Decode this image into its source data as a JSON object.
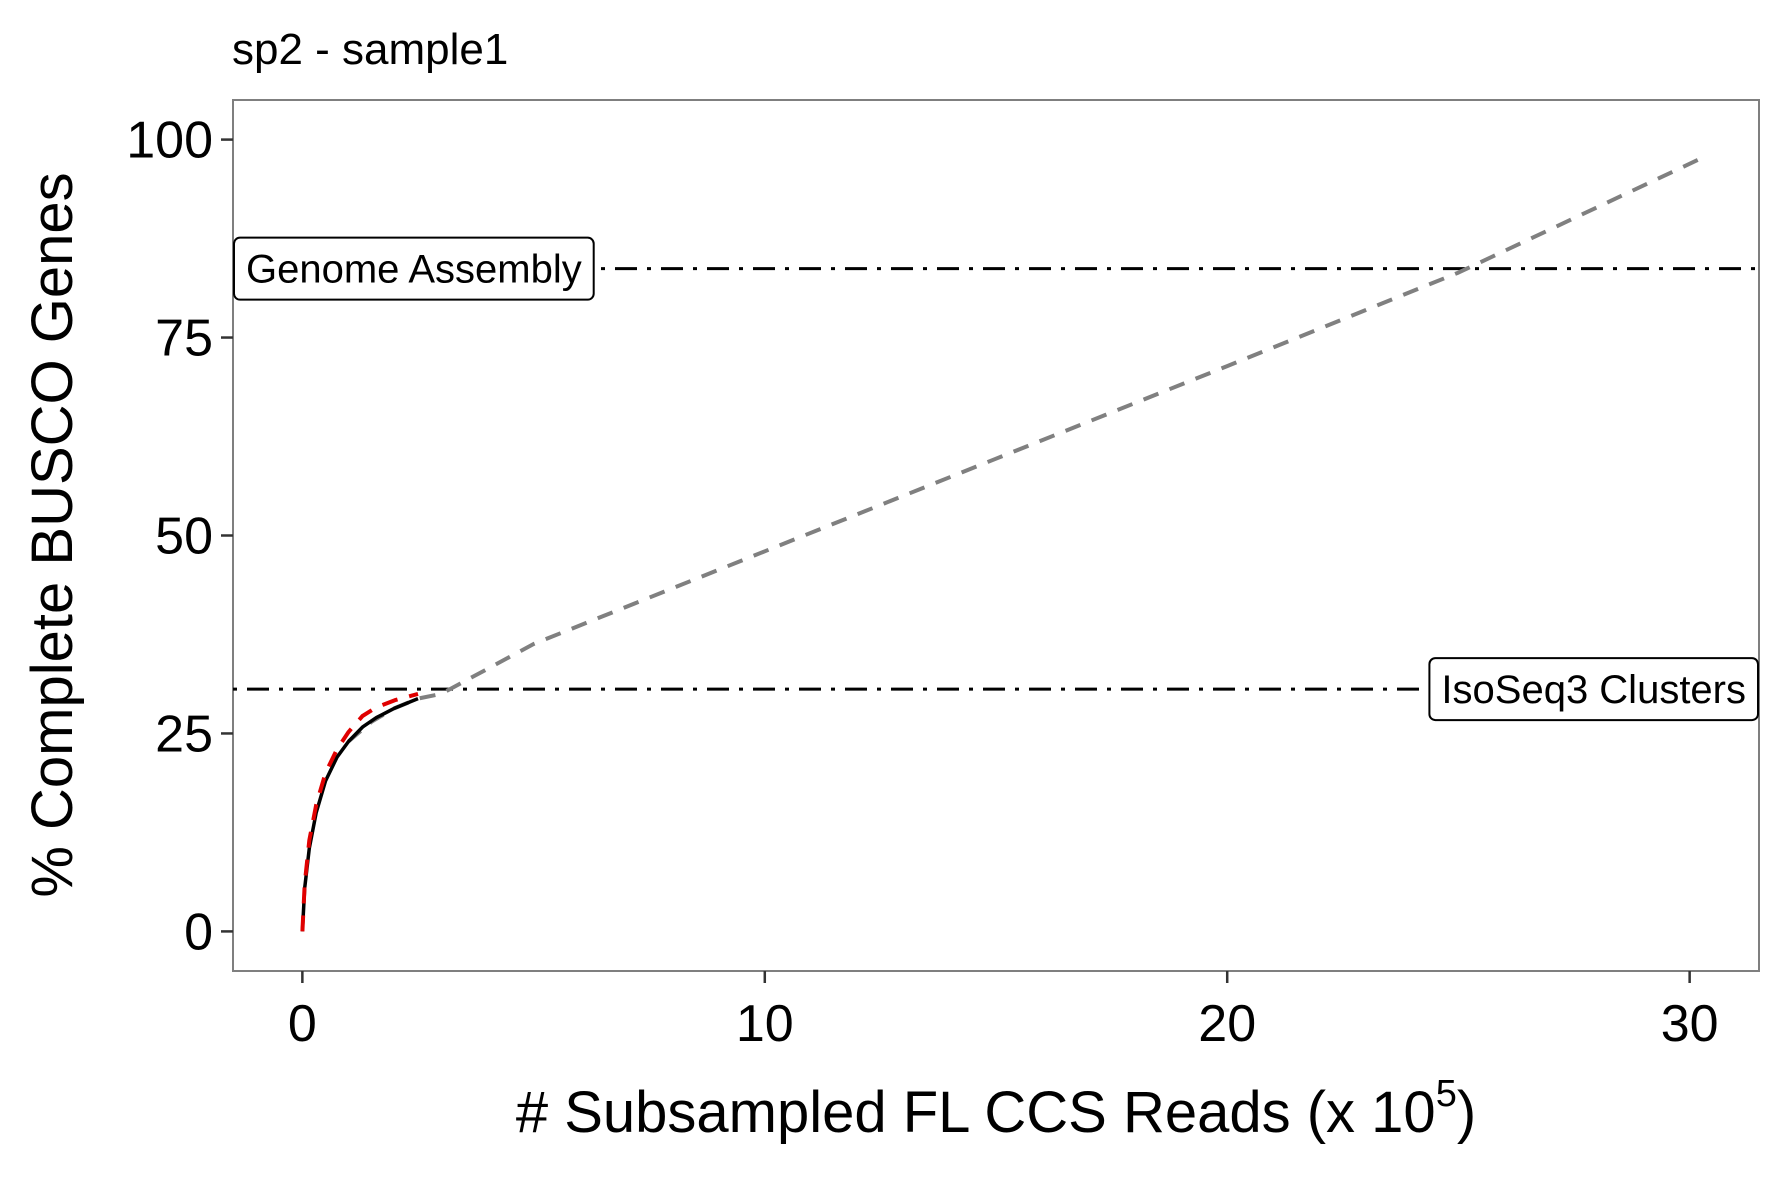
{
  "chart_data": {
    "type": "line",
    "title": "sp2 - sample1",
    "xlabel_main": "# Subsampled FL CCS Reads (x 10",
    "xlabel_sup": "5",
    "xlabel_end": ")",
    "ylabel": "% Complete BUSCO Genes",
    "xlim": [
      -1.5,
      31.5
    ],
    "ylim": [
      -5,
      105
    ],
    "xticks": [
      0,
      10,
      20,
      30
    ],
    "yticks": [
      0,
      25,
      50,
      75,
      100
    ],
    "xtick_labels": [
      "0",
      "10",
      "20",
      "30"
    ],
    "ytick_labels": [
      "0",
      "25",
      "50",
      "75",
      "100"
    ],
    "grid": false,
    "series": [
      {
        "style": "solid",
        "color": "#000000",
        "x": [
          0.0,
          0.05,
          0.15,
          0.3,
          0.5,
          0.75,
          1.0,
          1.3,
          1.6,
          2.0,
          2.5
        ],
        "y": [
          0.0,
          5.5,
          10.5,
          15.0,
          19.0,
          22.0,
          24.0,
          25.8,
          27.0,
          28.2,
          29.4
        ]
      },
      {
        "style": "dashed",
        "color": "#e00000",
        "x": [
          0.0,
          0.05,
          0.15,
          0.3,
          0.5,
          0.75,
          1.0,
          1.3,
          1.6,
          2.0,
          2.5
        ],
        "y": [
          0.0,
          6.0,
          11.5,
          16.0,
          20.0,
          23.0,
          25.2,
          27.2,
          28.3,
          29.2,
          30.0
        ]
      },
      {
        "style": "dashed",
        "color": "#808080",
        "x": [
          1.0,
          1.5,
          2.0,
          2.5,
          3.0,
          5.0,
          10.0,
          15.0,
          20.0,
          25.0,
          30.2
        ],
        "y": [
          24.0,
          26.5,
          28.2,
          29.4,
          30.0,
          36.3,
          48.0,
          59.7,
          71.4,
          83.2,
          97.5
        ]
      }
    ],
    "reference_lines": [
      {
        "label": "Genome Assembly",
        "y": 83.7,
        "label_position": "left"
      },
      {
        "label": "IsoSeq3 Clusters",
        "y": 30.6,
        "label_position": "right"
      }
    ]
  }
}
